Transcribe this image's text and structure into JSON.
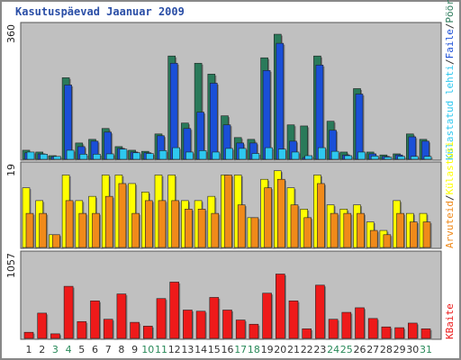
{
  "title": "Kasutuspäevad Jaanuar 2009",
  "colors": {
    "panel_bg": "#c0c0c0",
    "pages": "#2a7a5a",
    "files": "#1a4fd8",
    "hits": "#2ec8f0",
    "visits": "#ffff00",
    "sites": "#f08a1a",
    "kbytes": "#ee1a1a",
    "weekend_label": "#2a8a5a",
    "weekday_label": "#333333"
  },
  "chart_data": [
    {
      "type": "bar",
      "name": "top",
      "scale_label": "360",
      "legend": [
        "Pöördumisi",
        "Faile",
        "Külastatud lehti"
      ],
      "legend_colors": [
        "#2a7a5a",
        "#1a4fd8",
        "#2ec8f0"
      ],
      "ylim": [
        0,
        360
      ],
      "categories": [
        "1",
        "2",
        "3",
        "4",
        "5",
        "6",
        "7",
        "8",
        "9",
        "10",
        "11",
        "12",
        "13",
        "14",
        "15",
        "16",
        "17",
        "18",
        "19",
        "20",
        "21",
        "22",
        "23",
        "24",
        "25",
        "26",
        "27",
        "28",
        "29",
        "30",
        "31"
      ],
      "series": [
        {
          "name": "Pöördumisi",
          "values": [
            25,
            20,
            10,
            225,
            45,
            55,
            85,
            35,
            25,
            22,
            70,
            285,
            100,
            265,
            235,
            120,
            60,
            55,
            280,
            345,
            95,
            92,
            285,
            105,
            20,
            195,
            20,
            12,
            15,
            70,
            55
          ]
        },
        {
          "name": "Faile",
          "values": [
            18,
            15,
            7,
            205,
            35,
            50,
            75,
            30,
            20,
            18,
            65,
            265,
            85,
            130,
            210,
            95,
            45,
            45,
            245,
            320,
            50,
            5,
            260,
            80,
            12,
            180,
            15,
            8,
            12,
            62,
            50
          ]
        },
        {
          "name": "Külastatud lehti",
          "values": [
            20,
            14,
            8,
            25,
            14,
            14,
            15,
            28,
            18,
            16,
            24,
            32,
            20,
            24,
            20,
            30,
            30,
            16,
            32,
            28,
            20,
            10,
            32,
            22,
            10,
            20,
            9,
            6,
            8,
            8,
            8
          ]
        }
      ]
    },
    {
      "type": "bar",
      "name": "middle",
      "scale_label": "19",
      "legend": [
        "Külastusi",
        "Arvuteid"
      ],
      "legend_colors": [
        "#ffff00",
        "#f08a1a"
      ],
      "ylim": [
        0,
        19
      ],
      "categories": [
        "1",
        "2",
        "3",
        "4",
        "5",
        "6",
        "7",
        "8",
        "9",
        "10",
        "11",
        "12",
        "13",
        "14",
        "15",
        "16",
        "17",
        "18",
        "19",
        "20",
        "21",
        "22",
        "23",
        "24",
        "25",
        "26",
        "27",
        "28",
        "29",
        "30",
        "31"
      ],
      "series": [
        {
          "name": "Külastusi",
          "values": [
            14,
            11,
            3,
            17,
            11,
            12,
            17,
            17,
            15,
            13,
            17,
            17,
            11,
            11,
            12,
            17,
            17,
            7,
            16,
            18,
            14,
            9,
            17,
            10,
            9,
            10,
            6,
            4,
            11,
            8,
            8
          ]
        },
        {
          "name": "Arvuteid",
          "values": [
            8,
            8,
            3,
            11,
            8,
            8,
            12,
            15,
            8,
            11,
            11,
            11,
            9,
            9,
            8,
            17,
            10,
            7,
            14,
            16,
            10,
            7,
            15,
            8,
            8,
            8,
            4,
            3,
            8,
            6,
            6
          ]
        }
      ]
    },
    {
      "type": "bar",
      "name": "bottom",
      "scale_label": "1057",
      "legend": [
        "KBaite"
      ],
      "legend_colors": [
        "#ee1a1a"
      ],
      "ylim": [
        0,
        1057
      ],
      "categories": [
        "1",
        "2",
        "3",
        "4",
        "5",
        "6",
        "7",
        "8",
        "9",
        "10",
        "11",
        "12",
        "13",
        "14",
        "15",
        "16",
        "17",
        "18",
        "19",
        "20",
        "21",
        "22",
        "23",
        "24",
        "25",
        "26",
        "27",
        "28",
        "29",
        "30",
        "31"
      ],
      "series": [
        {
          "name": "KBaite",
          "values": [
            80,
            330,
            60,
            680,
            220,
            490,
            250,
            580,
            210,
            160,
            520,
            735,
            370,
            355,
            535,
            370,
            240,
            185,
            590,
            840,
            490,
            125,
            695,
            250,
            340,
            400,
            260,
            150,
            140,
            200,
            125
          ]
        }
      ]
    }
  ],
  "x_axis": {
    "labels": [
      "1",
      "2",
      "3",
      "4",
      "5",
      "6",
      "7",
      "8",
      "9",
      "10",
      "11",
      "12",
      "13",
      "14",
      "15",
      "16",
      "17",
      "18",
      "19",
      "20",
      "21",
      "22",
      "23",
      "24",
      "25",
      "26",
      "27",
      "28",
      "29",
      "30",
      "31"
    ],
    "weekend_days": [
      "3",
      "4",
      "10",
      "11",
      "17",
      "18",
      "24",
      "25",
      "31"
    ]
  }
}
